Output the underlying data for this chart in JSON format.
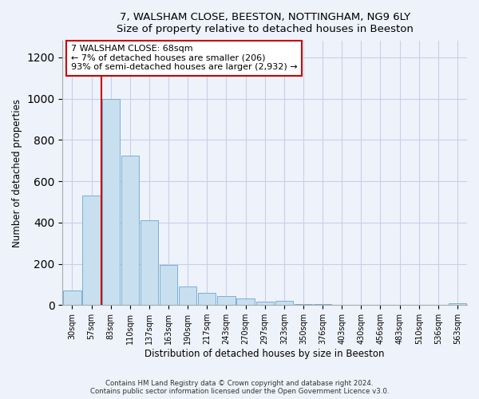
{
  "title": "7, WALSHAM CLOSE, BEESTON, NOTTINGHAM, NG9 6LY",
  "subtitle": "Size of property relative to detached houses in Beeston",
  "xlabel": "Distribution of detached houses by size in Beeston",
  "ylabel": "Number of detached properties",
  "bar_labels": [
    "30sqm",
    "57sqm",
    "83sqm",
    "110sqm",
    "137sqm",
    "163sqm",
    "190sqm",
    "217sqm",
    "243sqm",
    "270sqm",
    "297sqm",
    "323sqm",
    "350sqm",
    "376sqm",
    "403sqm",
    "430sqm",
    "456sqm",
    "483sqm",
    "510sqm",
    "536sqm",
    "563sqm"
  ],
  "bar_values": [
    70,
    530,
    1000,
    725,
    410,
    195,
    90,
    60,
    43,
    33,
    15,
    20,
    5,
    5,
    0,
    0,
    0,
    0,
    0,
    0,
    10
  ],
  "bar_color": "#c8dff0",
  "bar_edge_color": "#7ab0d0",
  "highlight_line_color": "#cc0000",
  "annotation_line1": "7 WALSHAM CLOSE: 68sqm",
  "annotation_line2": "← 7% of detached houses are smaller (206)",
  "annotation_line3": "93% of semi-detached houses are larger (2,932) →",
  "annotation_box_color": "#ffffff",
  "annotation_box_edge": "#cc0000",
  "ylim": [
    0,
    1280
  ],
  "yticks": [
    0,
    200,
    400,
    600,
    800,
    1000,
    1200
  ],
  "footnote": "Contains HM Land Registry data © Crown copyright and database right 2024.\nContains public sector information licensed under the Open Government Licence v3.0.",
  "bg_color": "#eef2fb",
  "grid_color": "#c8d0e8"
}
